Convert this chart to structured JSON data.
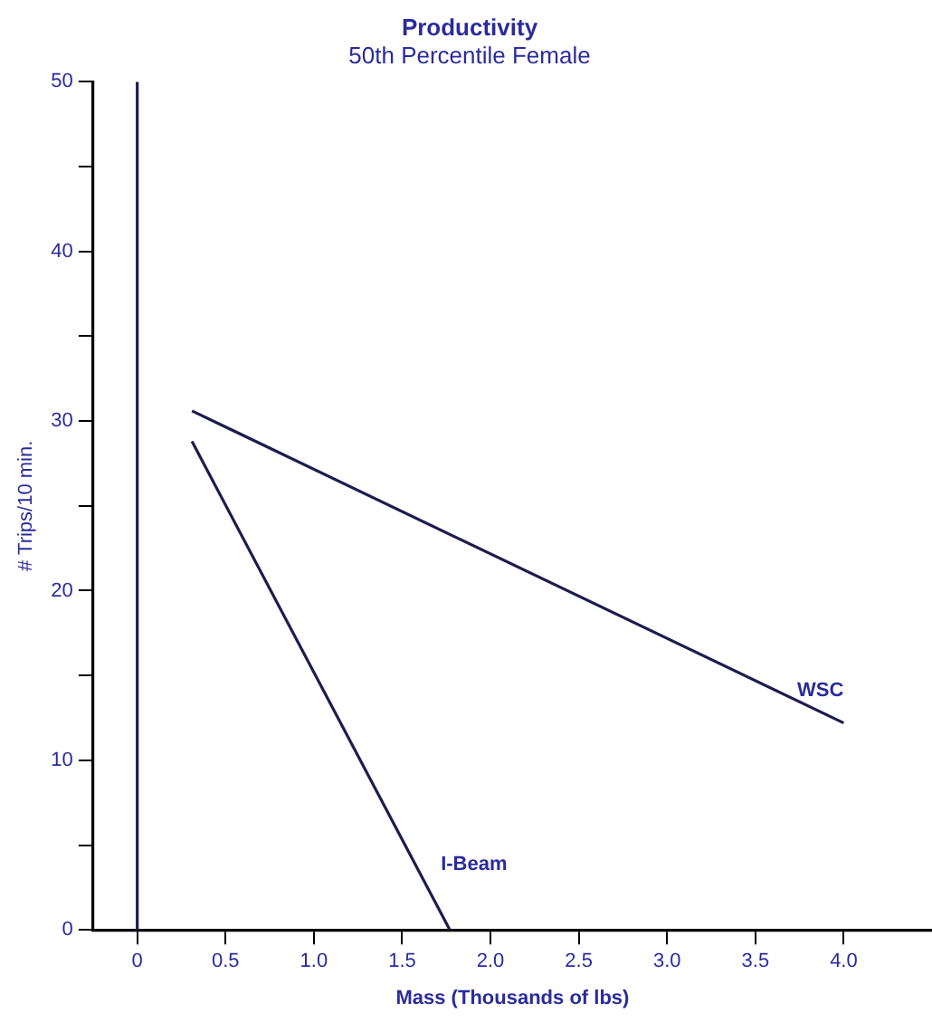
{
  "chart_data": {
    "type": "line",
    "title": "Productivity",
    "subtitle": "50th Percentile Female",
    "xlabel": "Mass (Thousands of lbs)",
    "ylabel": "# Trips/10 min.",
    "series": [
      {
        "name": "WSC",
        "color": "#1c1c4e",
        "x": [
          0.31,
          4.0
        ],
        "values": [
          30.6,
          12.2
        ]
      },
      {
        "name": "I-Beam",
        "color": "#1c1c4e",
        "x": [
          0.31,
          1.77
        ],
        "values": [
          28.8,
          0
        ]
      }
    ],
    "xlim": [
      -0.25,
      4.5
    ],
    "xticks": [
      {
        "value": 0,
        "label": "0"
      },
      0.5,
      {
        "value": 1,
        "label": "1.0"
      },
      1.5,
      {
        "value": 2,
        "label": "2.0"
      },
      2.5,
      {
        "value": 3,
        "label": "3.0"
      },
      3.5,
      {
        "value": 4,
        "label": "4.0"
      }
    ],
    "ylim": [
      0,
      50
    ],
    "yticks": [
      0,
      {
        "value": 5,
        "label": null
      },
      10,
      {
        "value": 15,
        "label": null
      },
      20,
      {
        "value": 25,
        "label": null
      },
      30,
      {
        "value": 35,
        "label": null
      },
      40,
      {
        "value": 45,
        "label": null
      },
      50
    ],
    "ref_lines": [
      {
        "axis": "x",
        "value": 0,
        "color": "#1c1c4e"
      }
    ],
    "grid": false,
    "legend": false,
    "marker": "none",
    "line_style": "solid"
  }
}
